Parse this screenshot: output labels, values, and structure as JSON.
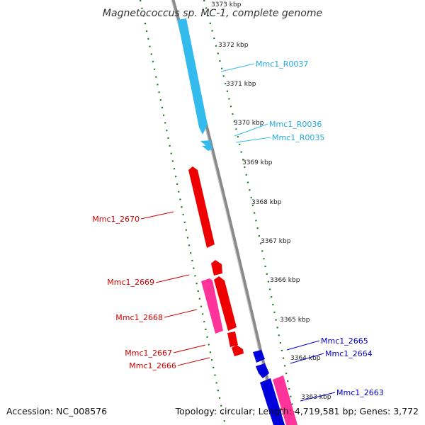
{
  "title": "Magnetococcus sp. MC-1, complete genome",
  "footer": {
    "accession": "Accession: NC_008576",
    "topology": "Topology: circular; Length: 4,719,581 bp; Genes: 3,772"
  },
  "colors": {
    "backbone": "#8a8a8a",
    "ruler": "#1a7a1a",
    "rna": "#33bbee",
    "red_gene": "#ee0000",
    "pink_gene": "#ff3399",
    "blue_gene": "#0000dd",
    "label_red": "#cc0000",
    "label_blue": "#0000cc",
    "label_cyan": "#22aadd"
  },
  "ruler_labels": [
    "3373 kbp",
    "3372 kbp",
    "3371 kbp",
    "3370 kbp",
    "3369 kbp",
    "3368 kbp",
    "3367 kbp",
    "3366 kbp",
    "3365 kbp",
    "3364 kbp",
    "3363 kbp"
  ],
  "features": [
    {
      "id": "Mmc1_R0037",
      "label": "Mmc1_R0037",
      "type": "rna",
      "strand": "-"
    },
    {
      "id": "Mmc1_R0036",
      "label": "Mmc1_R0036",
      "type": "rna",
      "strand": "-"
    },
    {
      "id": "Mmc1_R0035",
      "label": "Mmc1_R0035",
      "type": "rna",
      "strand": "-"
    },
    {
      "id": "Mmc1_2670",
      "label": "Mmc1_2670",
      "type": "red_gene",
      "strand": "-"
    },
    {
      "id": "Mmc1_2669",
      "label": "Mmc1_2669",
      "type": "red_gene",
      "strand": "-"
    },
    {
      "id": "Mmc1_2668",
      "label": "Mmc1_2668",
      "type": "pink_gene",
      "strand": "-"
    },
    {
      "id": "Mmc1_2667",
      "label": "Mmc1_2667",
      "type": "red_gene",
      "strand": "-"
    },
    {
      "id": "Mmc1_2666",
      "label": "Mmc1_2666",
      "type": "red_gene",
      "strand": "-"
    },
    {
      "id": "Mmc1_2665",
      "label": "Mmc1_2665",
      "type": "blue_gene",
      "strand": "+"
    },
    {
      "id": "Mmc1_2664",
      "label": "Mmc1_2664",
      "type": "blue_gene",
      "strand": "+"
    },
    {
      "id": "Mmc1_2663",
      "label": "Mmc1_2663",
      "type": "blue_gene",
      "strand": "+"
    },
    {
      "id": "pink_right",
      "label": "",
      "type": "pink_gene",
      "strand": "+"
    }
  ]
}
